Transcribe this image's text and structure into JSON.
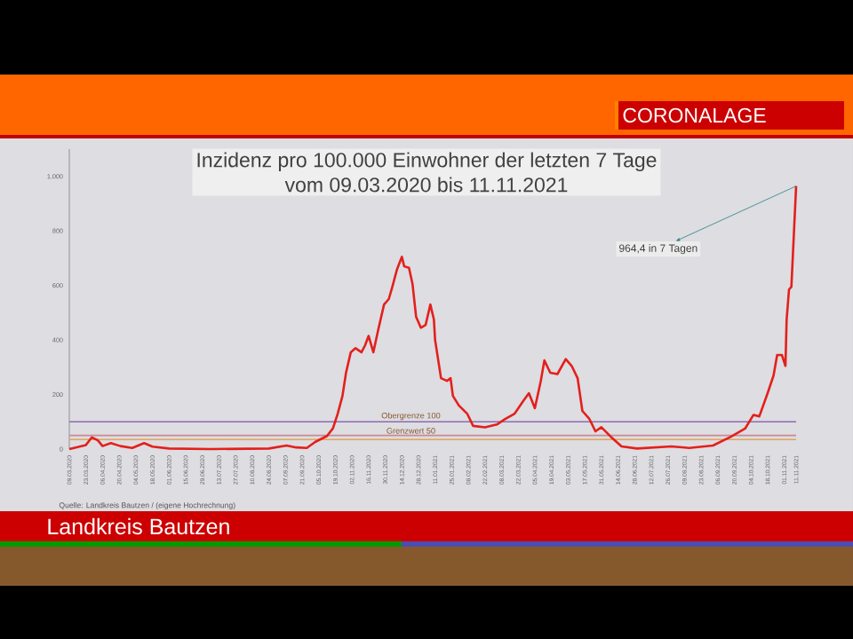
{
  "chart_data": {
    "type": "line",
    "title": "Inzidenz pro 100.000 Einwohner der letzten 7 Tage",
    "subtitle": "vom 09.03.2020 bis 11.11.2021",
    "annotations": [
      {
        "text": "964,4 in 7 Tagen",
        "x": "2021-11-11",
        "y": 964.4
      },
      "Quelle: Landkreis Bautzen  / (eigene Hochrechnung)",
      "CORONALAGE",
      "Landkreis Bautzen"
    ],
    "color": "#e3201b",
    "line_style": "solid",
    "x": [
      "2020-03-09",
      "2020-03-23",
      "2020-03-28",
      "2020-04-02",
      "2020-04-06",
      "2020-04-13",
      "2020-04-21",
      "2020-05-01",
      "2020-05-11",
      "2020-05-18",
      "2020-06-01",
      "2020-07-06",
      "2020-08-24",
      "2020-09-08",
      "2020-09-16",
      "2020-09-25",
      "2020-10-02",
      "2020-10-12",
      "2020-10-17",
      "2020-10-21",
      "2020-10-25",
      "2020-10-28",
      "2020-11-01",
      "2020-11-05",
      "2020-11-10",
      "2020-11-13",
      "2020-11-16",
      "2020-11-20",
      "2020-11-24",
      "2020-11-29",
      "2020-12-03",
      "2020-12-06",
      "2020-12-10",
      "2020-12-14",
      "2020-12-16",
      "2020-12-20",
      "2020-12-23",
      "2020-12-26",
      "2020-12-30",
      "2021-01-03",
      "2021-01-07",
      "2021-01-10",
      "2021-01-11",
      "2021-01-16",
      "2021-01-21",
      "2021-01-24",
      "2021-01-26",
      "2021-01-31",
      "2021-02-07",
      "2021-02-12",
      "2021-02-22",
      "2021-03-04",
      "2021-03-11",
      "2021-03-19",
      "2021-03-26",
      "2021-03-31",
      "2021-04-05",
      "2021-04-10",
      "2021-04-13",
      "2021-04-18",
      "2021-04-24",
      "2021-05-01",
      "2021-05-06",
      "2021-05-11",
      "2021-05-15",
      "2021-05-21",
      "2021-05-26",
      "2021-05-31",
      "2021-06-08",
      "2021-06-17",
      "2021-06-30",
      "2021-07-29",
      "2021-08-13",
      "2021-09-02",
      "2021-09-17",
      "2021-09-29",
      "2021-10-06",
      "2021-10-11",
      "2021-10-18",
      "2021-10-23",
      "2021-10-26",
      "2021-10-30",
      "2021-11-02",
      "2021-11-03",
      "2021-11-05",
      "2021-11-07",
      "2021-11-09",
      "2021-11-11"
    ],
    "values": [
      0,
      15,
      43,
      32,
      11,
      22,
      11,
      4,
      22,
      9,
      2,
      0,
      2,
      13,
      6,
      4,
      26,
      48,
      76,
      130,
      195,
      280,
      355,
      370,
      355,
      380,
      415,
      355,
      435,
      530,
      550,
      595,
      660,
      705,
      670,
      665,
      605,
      485,
      445,
      455,
      530,
      475,
      400,
      260,
      250,
      260,
      195,
      160,
      130,
      85,
      80,
      90,
      110,
      130,
      175,
      205,
      150,
      250,
      325,
      280,
      275,
      330,
      305,
      260,
      140,
      110,
      65,
      80,
      45,
      10,
      2,
      10,
      4,
      13,
      45,
      75,
      125,
      120,
      205,
      270,
      345,
      345,
      305,
      475,
      585,
      595,
      780,
      964.4
    ],
    "xlim": [
      "2020-03-09",
      "2021-11-11"
    ],
    "xticks": [
      {
        "value": "2020-03-09",
        "label": "09.03.2020"
      },
      {
        "value": "2020-03-23",
        "label": "23.03.2020"
      },
      {
        "value": "2020-04-06",
        "label": "06.04.2020"
      },
      {
        "value": "2020-04-20",
        "label": "20.04.2020"
      },
      {
        "value": "2020-05-04",
        "label": "04.05.2020"
      },
      {
        "value": "2020-05-18",
        "label": "18.05.2020"
      },
      {
        "value": "2020-06-01",
        "label": "01.06.2020"
      },
      {
        "value": "2020-06-15",
        "label": "15.06.2020"
      },
      {
        "value": "2020-06-29",
        "label": "29.06.2020"
      },
      {
        "value": "2020-07-13",
        "label": "13.07.2020"
      },
      {
        "value": "2020-07-27",
        "label": "27.07.2020"
      },
      {
        "value": "2020-08-10",
        "label": "10.08.2020"
      },
      {
        "value": "2020-08-24",
        "label": "24.08.2020"
      },
      {
        "value": "2020-09-07",
        "label": "07.09.2020"
      },
      {
        "value": "2020-09-21",
        "label": "21.09.2020"
      },
      {
        "value": "2020-10-05",
        "label": "05.10.2020"
      },
      {
        "value": "2020-10-19",
        "label": "19.10.2020"
      },
      {
        "value": "2020-11-02",
        "label": "02.11.2020"
      },
      {
        "value": "2020-11-16",
        "label": "16.11.2020"
      },
      {
        "value": "2020-11-30",
        "label": "30.11.2020"
      },
      {
        "value": "2020-12-14",
        "label": "14.12.2020"
      },
      {
        "value": "2020-12-28",
        "label": "28.12.2020"
      },
      {
        "value": "2021-01-11",
        "label": "11.01.2021"
      },
      {
        "value": "2021-01-25",
        "label": "25.01.2021"
      },
      {
        "value": "2021-02-08",
        "label": "08.02.2021"
      },
      {
        "value": "2021-02-22",
        "label": "22.02.2021"
      },
      {
        "value": "2021-03-08",
        "label": "08.03.2021"
      },
      {
        "value": "2021-03-22",
        "label": "22.03.2021"
      },
      {
        "value": "2021-04-05",
        "label": "05.04.2021"
      },
      {
        "value": "2021-04-19",
        "label": "19.04.2021"
      },
      {
        "value": "2021-05-03",
        "label": "03.05.2021"
      },
      {
        "value": "2021-05-17",
        "label": "17.05.2021"
      },
      {
        "value": "2021-05-31",
        "label": "31.05.2021"
      },
      {
        "value": "2021-06-14",
        "label": "14.06.2021"
      },
      {
        "value": "2021-06-28",
        "label": "28.06.2021"
      },
      {
        "value": "2021-07-12",
        "label": "12.07.2021"
      },
      {
        "value": "2021-07-26",
        "label": "26.07.2021"
      },
      {
        "value": "2021-08-09",
        "label": "09.08.2021"
      },
      {
        "value": "2021-08-23",
        "label": "23.08.2021"
      },
      {
        "value": "2021-09-06",
        "label": "06.09.2021"
      },
      {
        "value": "2021-09-20",
        "label": "20.09.2021"
      },
      {
        "value": "2021-10-04",
        "label": "04.10.2021"
      },
      {
        "value": "2021-10-18",
        "label": "18.10.2021"
      },
      {
        "value": "2021-11-01",
        "label": "01.11.2021"
      },
      {
        "value": "2021-11-11",
        "label": "11.11.2021"
      }
    ],
    "ylim": [
      0,
      1100
    ],
    "yticks": [
      0,
      200,
      400,
      600,
      800,
      {
        "value": 1000,
        "label": "1.000"
      }
    ],
    "ref_lines": [
      {
        "axis": "y",
        "value": 100,
        "label": "Obergrenze 100",
        "color": "#8e6bb0"
      },
      {
        "axis": "y",
        "value": 50,
        "label": "Grenzwert 50",
        "color": "#c98a96"
      },
      {
        "axis": "y",
        "value": 35,
        "color": "#e3a25a"
      }
    ]
  }
}
